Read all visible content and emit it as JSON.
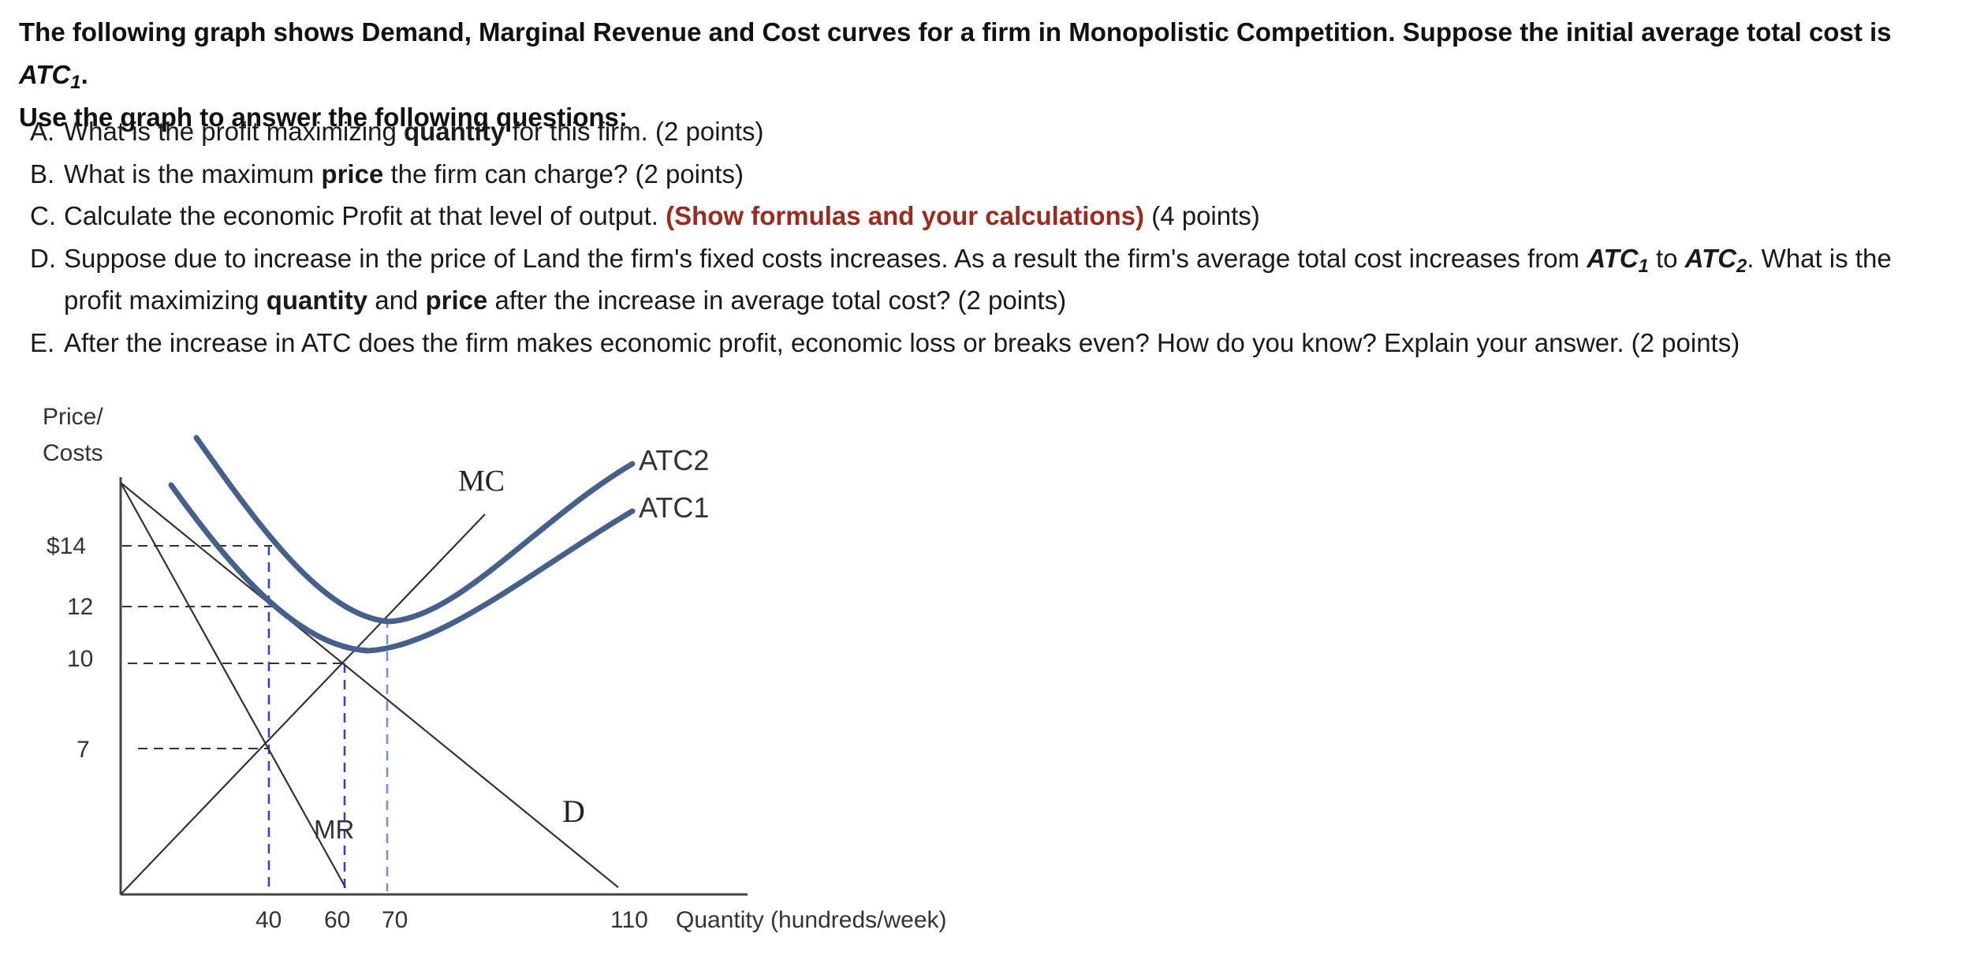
{
  "intro": {
    "line1_pre": "The following graph shows Demand, Marginal Revenue and Cost curves for a firm in Monopolistic Competition. Suppose the initial average total cost is ",
    "line1_atc": "ATC",
    "line1_sub": "1",
    "line1_end": ".",
    "line2": "Use the graph to answer the following questions:"
  },
  "questions": {
    "a": {
      "letter": "A.",
      "pre": "What is the profit maximizing ",
      "bold": "quantity",
      "post": " for this firm. (2 points)"
    },
    "b": {
      "letter": "B.",
      "pre": "What is the maximum ",
      "bold": "price",
      "post": " the firm can charge? (2 points)"
    },
    "c": {
      "letter": "C.",
      "pre": "Calculate the economic Profit at  that level of output. ",
      "red": "(Show formulas and your calculations)",
      "post": " (4 points)"
    },
    "d": {
      "letter": "D.",
      "pre": "Suppose due to increase in the price of Land the firm's fixed costs increases. As a result the firm's average total cost increases from ",
      "atc1": "ATC",
      "atc1_sub": "1",
      "mid": " to ",
      "atc2": "ATC",
      "atc2_sub": "2",
      "post1": ". What is the profit maximizing ",
      "bold1": "quantity",
      "and": " and ",
      "bold2": "price",
      "post2": " after the increase in average total cost? (2 points)"
    },
    "e": {
      "letter": "E.",
      "text": "After the increase in ATC does the firm makes economic profit, economic loss or breaks even?  How do you know? Explain your answer. (2 points)"
    }
  },
  "chart_data": {
    "type": "line",
    "ylabel_line1": "Price/",
    "ylabel_line2": "Costs",
    "xlabel": "Quantity (hundreds/week)",
    "y_ticks": [
      "$14",
      "12",
      "10",
      "7"
    ],
    "y_tick_values": [
      14,
      12,
      10,
      7
    ],
    "x_ticks": [
      "40",
      "60",
      "70",
      "110"
    ],
    "x_tick_values": [
      40,
      60,
      70,
      110
    ],
    "curve_labels": {
      "mc": "MC",
      "atc2": "ATC2",
      "atc1": "ATC1",
      "mr": "MR",
      "d": "D"
    },
    "series": [
      {
        "name": "D",
        "x": [
          0,
          110
        ],
        "y": [
          18.5,
          0
        ]
      },
      {
        "name": "MR",
        "x": [
          0,
          60
        ],
        "y": [
          18.5,
          0
        ]
      },
      {
        "name": "MC",
        "x": [
          0,
          40,
          60,
          70,
          95
        ],
        "y": [
          0,
          7,
          10,
          12,
          17
        ]
      },
      {
        "name": "ATC1",
        "x": [
          10,
          40,
          60,
          65,
          70,
          110
        ],
        "y": [
          17,
          12,
          10,
          9.7,
          10,
          16
        ]
      },
      {
        "name": "ATC2",
        "x": [
          17,
          40,
          60,
          70,
          90,
          110
        ],
        "y": [
          19,
          13.5,
          11,
          10.5,
          12.5,
          16.5
        ]
      }
    ],
    "guide_levels": {
      "price": [
        14,
        12,
        10,
        7
      ],
      "quantity": [
        40,
        60,
        70
      ]
    },
    "colors": {
      "atc": "#46608c",
      "lines": "#333333",
      "guide_dash": "#2f3fd6"
    }
  }
}
